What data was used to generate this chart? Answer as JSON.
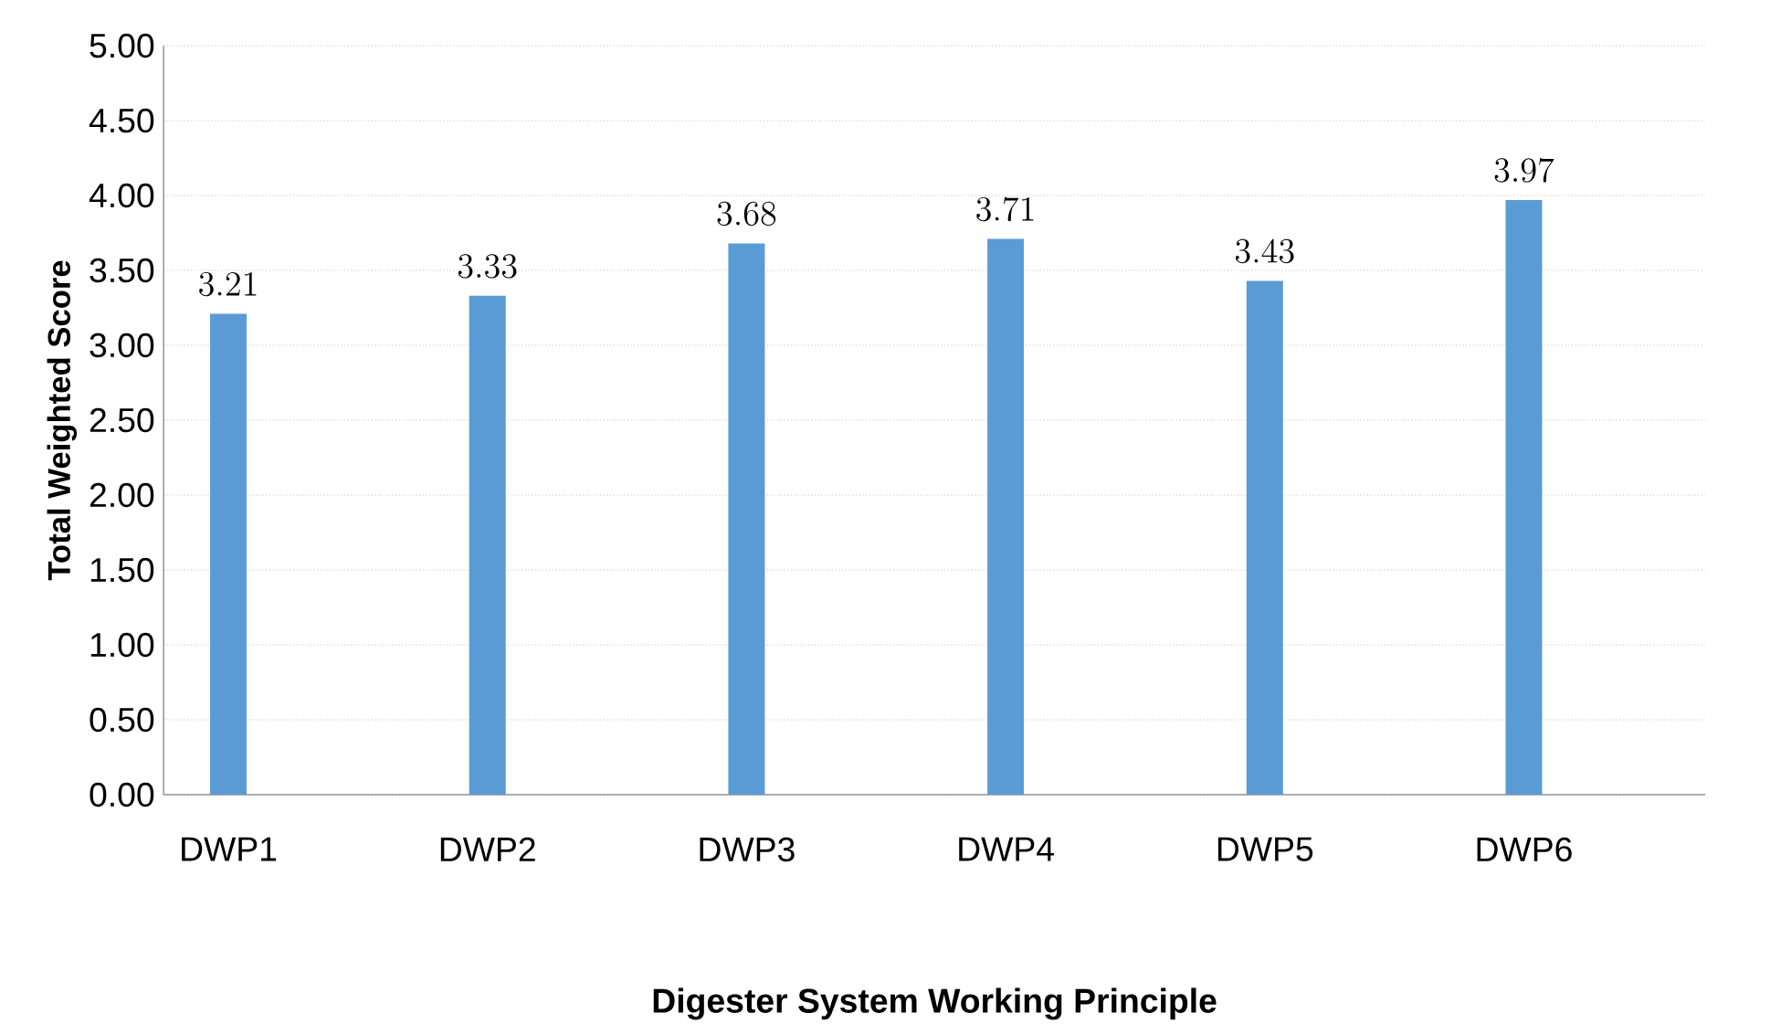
{
  "chart_data": {
    "type": "bar",
    "xlabel": "Digester System Working Principle",
    "ylabel": "Total Weighted Score",
    "categories": [
      "DWP1",
      "DWP2",
      "DWP3",
      "DWP4",
      "DWP5",
      "DWP6"
    ],
    "values": [
      3.21,
      3.33,
      3.68,
      3.71,
      3.43,
      3.97
    ],
    "color": "#5b9bd5",
    "ylim": [
      0,
      5
    ],
    "yticks": [
      {
        "value": 0,
        "label": "0.00"
      },
      {
        "value": 0.5,
        "label": "0.50"
      },
      {
        "value": 1,
        "label": "1.00"
      },
      {
        "value": 1.5,
        "label": "1.50"
      },
      {
        "value": 2,
        "label": "2.00"
      },
      {
        "value": 2.5,
        "label": "2.50"
      },
      {
        "value": 3,
        "label": "3.00"
      },
      {
        "value": 3.5,
        "label": "3.50"
      },
      {
        "value": 4,
        "label": "4.00"
      },
      {
        "value": 4.5,
        "label": "4.50"
      },
      {
        "value": 5,
        "label": "5.00"
      }
    ],
    "grid": "y",
    "data_labels": true
  }
}
